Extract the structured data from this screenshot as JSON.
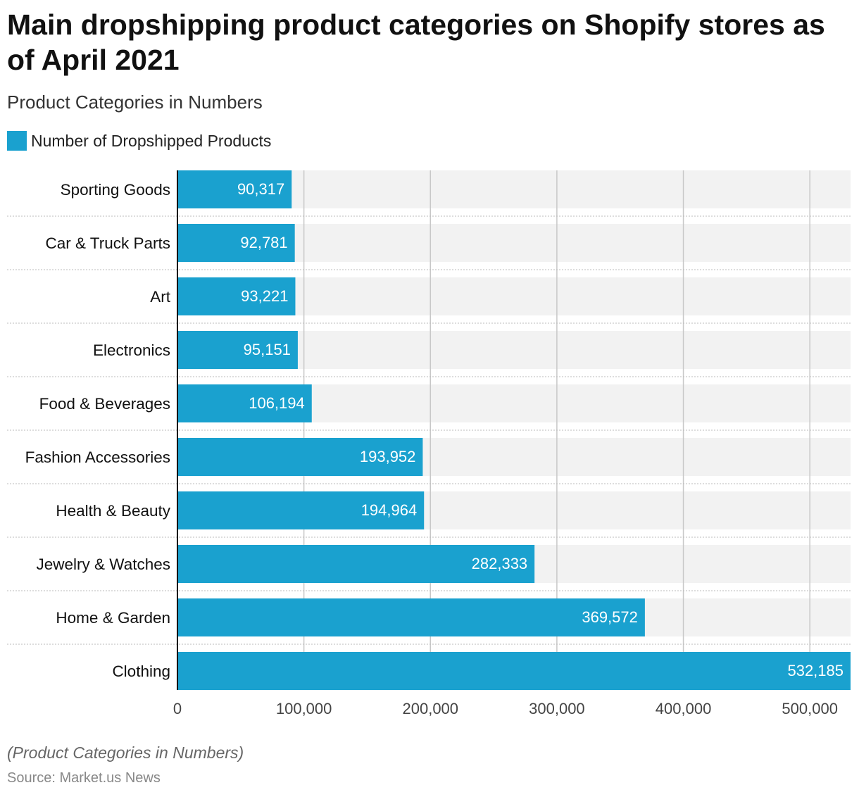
{
  "title": "Main dropshipping product categories on Shopify stores as of April 2021",
  "subtitle": "Product Categories in Numbers",
  "footnote": "(Product Categories in Numbers)",
  "source": "Source: Market.us News",
  "colors": {
    "bar": "#1aa1cf",
    "band": "#f2f2f2",
    "grid": "#c8c8c8"
  },
  "chart_data": {
    "type": "bar",
    "orientation": "horizontal",
    "title": "Main dropshipping product categories on Shopify stores as of April 2021",
    "categories": [
      "Sporting Goods",
      "Car & Truck Parts",
      "Art",
      "Electronics",
      "Food & Beverages",
      "Fashion Accessories",
      "Health & Beauty",
      "Jewelry & Watches",
      "Home & Garden",
      "Clothing"
    ],
    "series": [
      {
        "name": "Number of Dropshipped Products",
        "values": [
          90317,
          92781,
          93221,
          95151,
          106194,
          193952,
          194964,
          282333,
          369572,
          532185
        ]
      }
    ],
    "value_labels": [
      "90,317",
      "92,781",
      "93,221",
      "95,151",
      "106,194",
      "193,952",
      "194,964",
      "282,333",
      "369,572",
      "532,185"
    ],
    "xticks": [
      0,
      100000,
      200000,
      300000,
      400000,
      500000
    ],
    "xtick_labels": [
      "0",
      "100,000",
      "200,000",
      "300,000",
      "400,000",
      "500,000"
    ],
    "xlim": [
      0,
      532185
    ],
    "xlabel": "",
    "ylabel": "",
    "grid": true,
    "legend": "top-left"
  }
}
